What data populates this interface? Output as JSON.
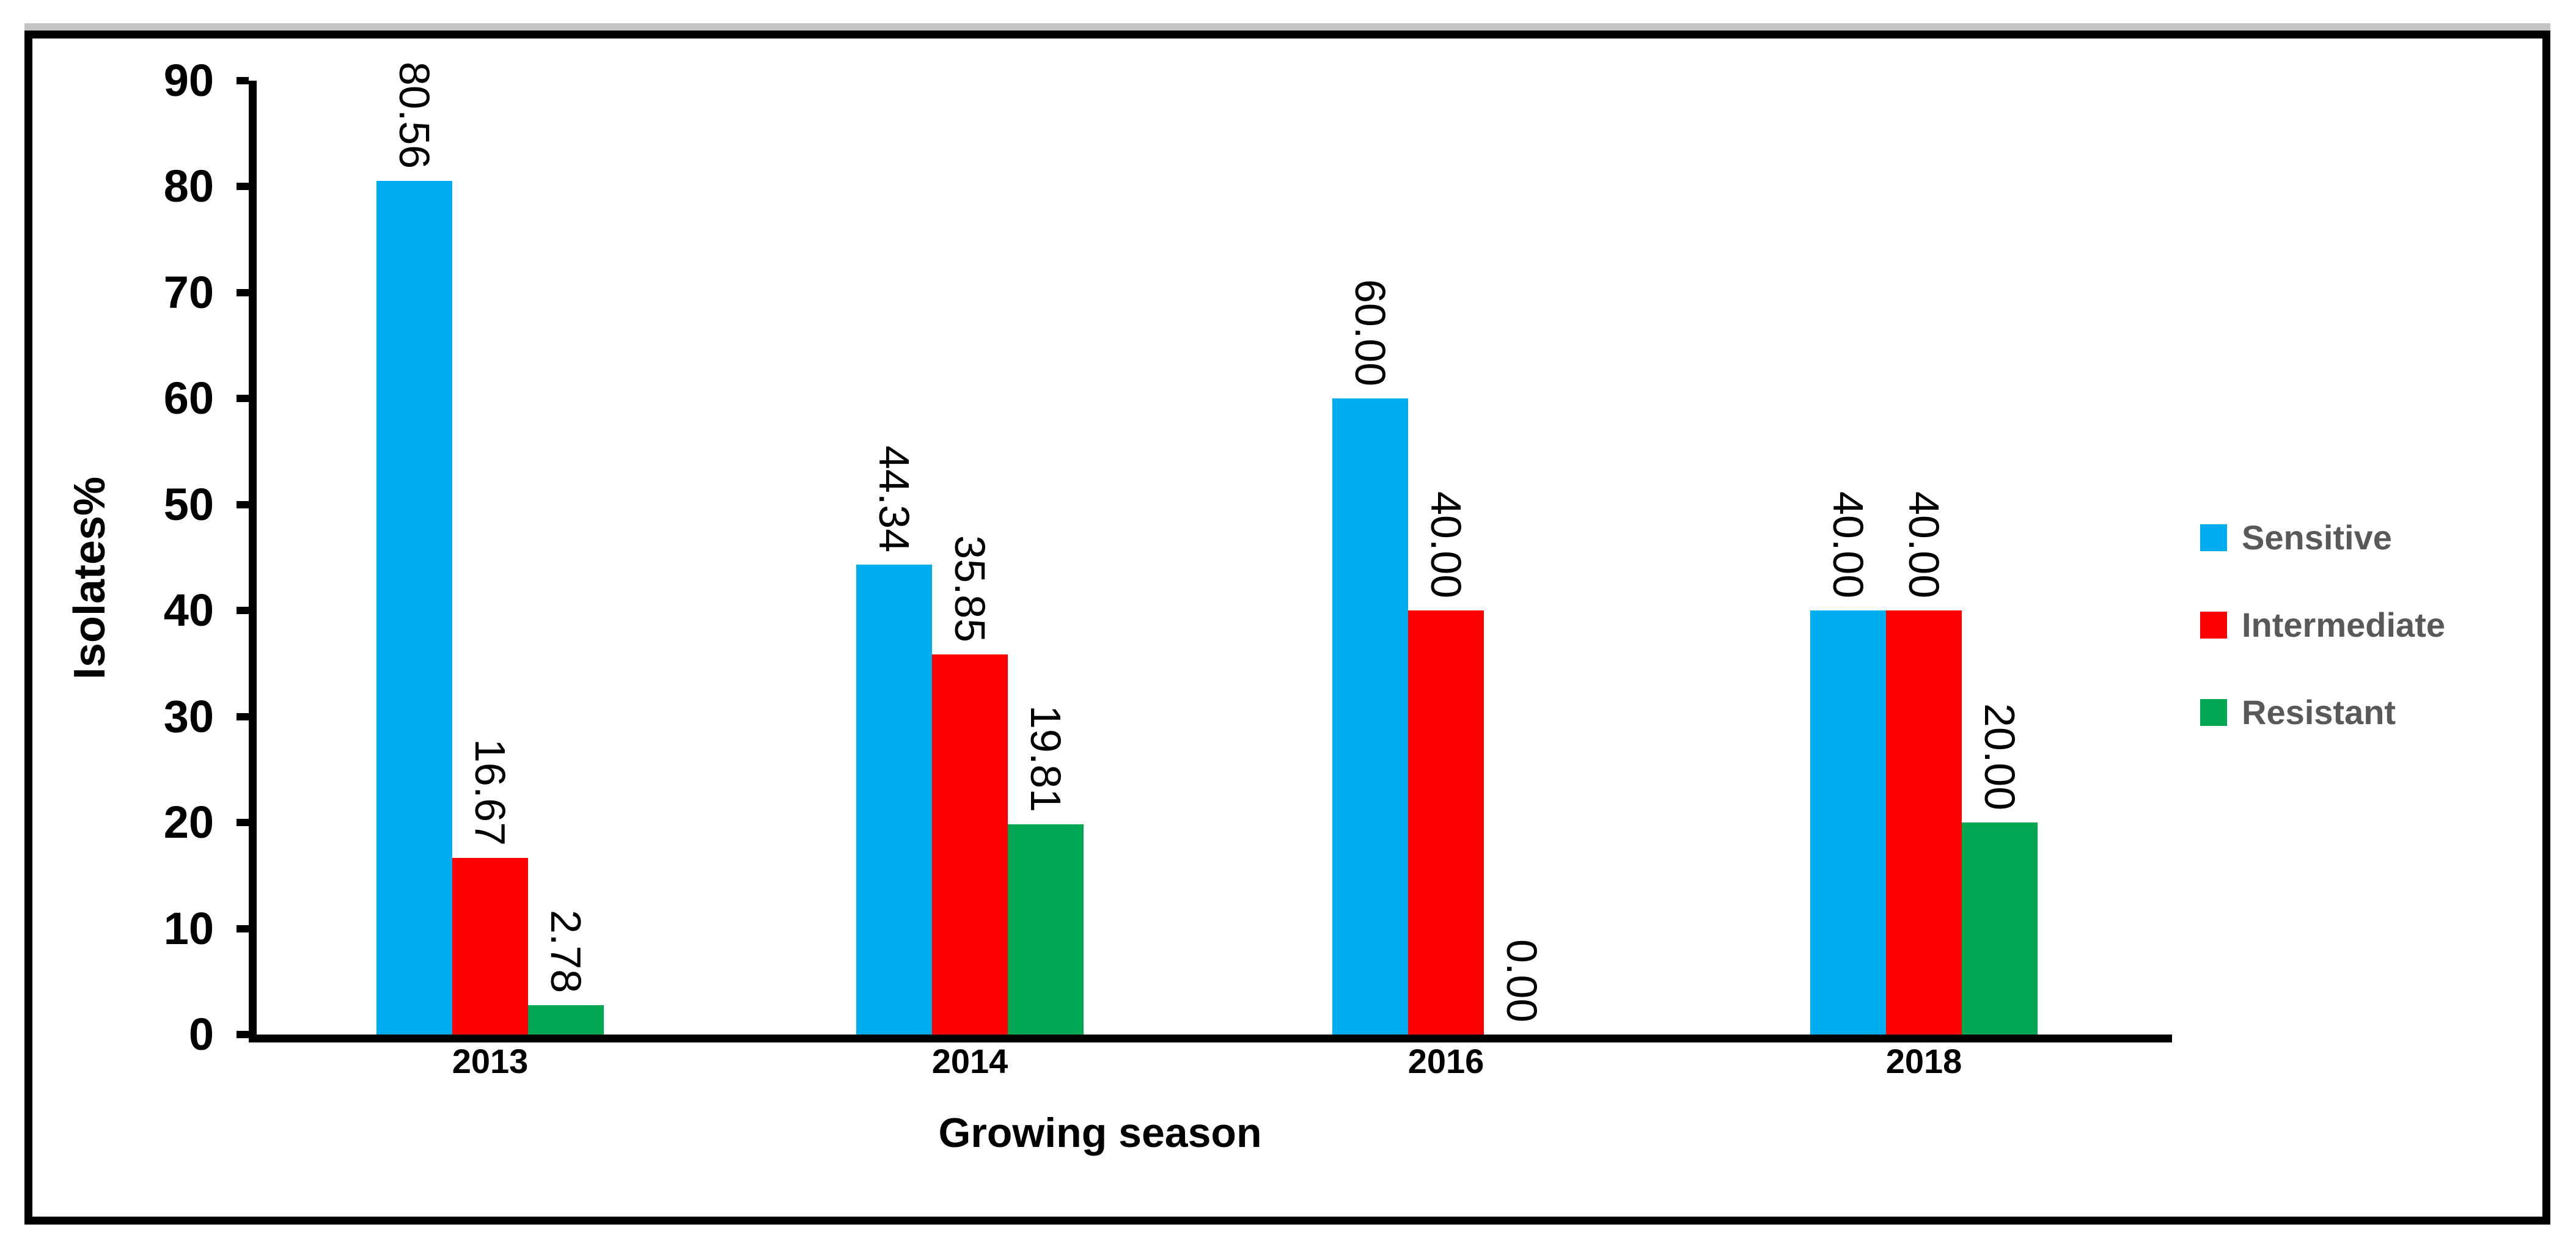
{
  "figure": {
    "background": "#ffffff",
    "frame_color": "#000000",
    "frame_top_edge_color": "#c3c3c3"
  },
  "chart_data": {
    "type": "bar",
    "title": "",
    "xlabel": "Growing season",
    "ylabel": "Isolates%",
    "categories": [
      "2013",
      "2014",
      "2016",
      "2018"
    ],
    "series": [
      {
        "name": "Sensitive",
        "color": "#00AEEF",
        "values": [
          80.56,
          44.34,
          60.0,
          40.0
        ],
        "labels": [
          "80.56",
          "44.34",
          "60.00",
          "40.00"
        ]
      },
      {
        "name": "Intermediate",
        "color": "#FF0000",
        "values": [
          16.67,
          35.85,
          40.0,
          40.0
        ],
        "labels": [
          "16.67",
          "35.85",
          "40.00",
          "40.00"
        ]
      },
      {
        "name": "Resistant",
        "color": "#00A651",
        "values": [
          2.78,
          19.81,
          0.0,
          20.0
        ],
        "labels": [
          "2.78",
          "19.81",
          "0.00",
          "20.00"
        ]
      }
    ],
    "ylim": [
      0,
      90
    ],
    "yticks": [
      "0",
      "10",
      "20",
      "30",
      "40",
      "50",
      "60",
      "70",
      "80",
      "90"
    ],
    "grid": false,
    "legend_position": "right",
    "legend_text_color": "#595959",
    "value_label_rotation": "rotated-90-clockwise"
  }
}
